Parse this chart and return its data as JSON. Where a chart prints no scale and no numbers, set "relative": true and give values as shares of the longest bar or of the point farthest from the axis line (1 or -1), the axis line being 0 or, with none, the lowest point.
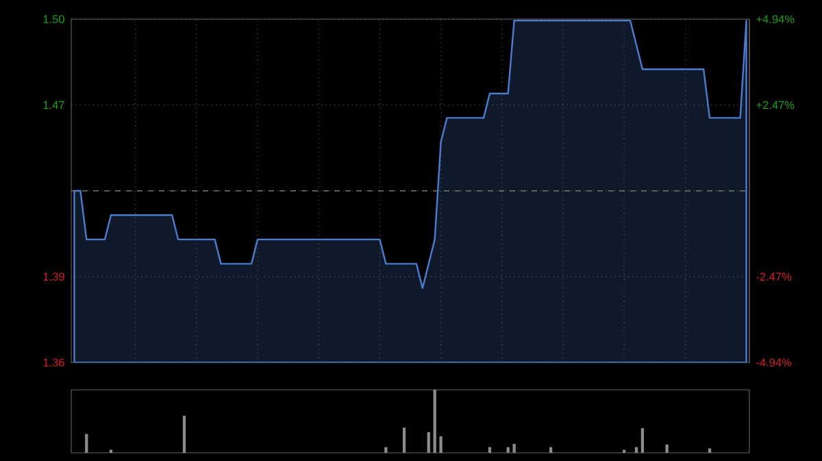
{
  "chart_data": [
    {
      "type": "area",
      "categories": [
        null,
        null,
        null,
        null,
        null,
        null,
        null,
        null,
        null,
        null,
        null,
        null,
        null,
        null,
        null,
        null,
        null,
        null,
        null,
        null,
        null,
        null,
        null,
        null,
        null,
        null,
        null,
        null,
        null,
        null,
        null,
        null,
        null,
        null,
        null,
        null,
        null,
        null,
        null,
        null,
        null,
        null,
        null,
        null,
        null,
        null,
        null,
        null,
        null,
        null,
        null,
        null,
        null,
        null,
        null,
        null,
        null,
        null,
        null,
        null,
        null,
        null,
        null,
        null,
        null,
        null,
        null,
        null,
        null,
        null,
        null,
        null,
        null,
        null,
        null,
        null,
        null,
        null,
        null,
        null,
        null,
        null,
        null,
        null,
        null,
        null,
        null,
        null,
        null,
        null,
        null,
        null,
        null,
        null,
        null,
        null,
        null,
        null,
        null,
        null,
        null,
        null,
        null,
        null,
        null,
        null,
        null,
        null,
        null,
        null,
        null
      ],
      "ylim": [
        1.3594,
        1.5006
      ],
      "yticks": [
        {
          "value": 1.3594,
          "label": "1.36"
        },
        {
          "value": 1.3947,
          "label": "1.39"
        },
        {
          "value": 1.43,
          "label": null
        },
        {
          "value": 1.4653,
          "label": "1.47"
        },
        {
          "value": 1.5006,
          "label": "1.50"
        }
      ],
      "y2lim": [
        -4.94,
        4.94
      ],
      "y2ticks": [
        {
          "value": -4.94,
          "label": "-4.94%"
        },
        {
          "value": -2.47,
          "label": "-2.47%"
        },
        {
          "value": 0,
          "label": null
        },
        {
          "value": 2.47,
          "label": "+2.47%"
        },
        {
          "value": 4.94,
          "label": "+4.94%"
        }
      ],
      "grid": true,
      "ref_lines": [
        {
          "axis": "y",
          "value": 1.43,
          "color": "#777777",
          "line_style": "dashed"
        }
      ],
      "series": [
        {
          "color": "#4a7cd0",
          "values": [
            1.43,
            1.43,
            1.41,
            1.41,
            1.41,
            1.41,
            1.42,
            1.42,
            1.42,
            1.42,
            1.42,
            1.42,
            1.42,
            1.42,
            1.42,
            1.42,
            1.42,
            1.41,
            1.41,
            1.41,
            1.41,
            1.41,
            1.41,
            1.41,
            1.4,
            1.4,
            1.4,
            1.4,
            1.4,
            1.4,
            1.41,
            1.41,
            1.41,
            1.41,
            1.41,
            1.41,
            1.41,
            1.41,
            1.41,
            1.41,
            1.41,
            1.41,
            1.41,
            1.41,
            1.41,
            1.41,
            1.41,
            1.41,
            1.41,
            1.41,
            1.41,
            1.4,
            1.4,
            1.4,
            1.4,
            1.4,
            1.4,
            1.39,
            1.4,
            1.41,
            1.45,
            1.46,
            1.46,
            1.46,
            1.46,
            1.46,
            1.46,
            1.46,
            1.47,
            1.47,
            1.47,
            1.47,
            1.5,
            1.5,
            1.5,
            1.5,
            1.5,
            1.5,
            1.5,
            1.5,
            1.5,
            1.5,
            1.5,
            1.5,
            1.5,
            1.5,
            1.5,
            1.5,
            1.5,
            1.5,
            1.5,
            1.5,
            1.49,
            1.48,
            1.48,
            1.48,
            1.48,
            1.48,
            1.48,
            1.48,
            1.48,
            1.48,
            1.48,
            1.48,
            1.46,
            1.46,
            1.46,
            1.46,
            1.46,
            1.46,
            1.5
          ]
        }
      ]
    },
    {
      "type": "bar",
      "relative": true,
      "categories": [
        null,
        null,
        null,
        null,
        null,
        null,
        null,
        null,
        null,
        null,
        null,
        null,
        null,
        null,
        null,
        null,
        null,
        null,
        null,
        null,
        null,
        null,
        null,
        null,
        null,
        null,
        null,
        null,
        null,
        null,
        null,
        null,
        null,
        null,
        null,
        null,
        null,
        null,
        null,
        null,
        null,
        null,
        null,
        null,
        null,
        null,
        null,
        null,
        null,
        null,
        null,
        null,
        null,
        null,
        null,
        null,
        null,
        null,
        null,
        null,
        null,
        null,
        null,
        null,
        null,
        null,
        null,
        null,
        null,
        null,
        null,
        null,
        null,
        null,
        null,
        null,
        null,
        null,
        null,
        null,
        null,
        null,
        null,
        null,
        null,
        null,
        null,
        null,
        null,
        null,
        null,
        null,
        null,
        null,
        null,
        null,
        null,
        null,
        null,
        null,
        null,
        null,
        null,
        null,
        null,
        null,
        null,
        null,
        null,
        null,
        null
      ],
      "series": [
        {
          "color": "#8c8c8c",
          "values": [
            0,
            0,
            0.3,
            0,
            0,
            0,
            0.05,
            0,
            0,
            0,
            0,
            0,
            0,
            0,
            0,
            0,
            0,
            0,
            0.59,
            0,
            0,
            0,
            0,
            0,
            0,
            0,
            0,
            0,
            0,
            0,
            0,
            0,
            0,
            0,
            0,
            0,
            0,
            0,
            0,
            0,
            0,
            0,
            0,
            0,
            0,
            0,
            0,
            0,
            0,
            0,
            0,
            0.09,
            0,
            0,
            0.4,
            0,
            0,
            0,
            0.33,
            1.0,
            0.26,
            0,
            0,
            0,
            0,
            0,
            0,
            0,
            0.09,
            0,
            0,
            0.09,
            0.14,
            0,
            0,
            0,
            0,
            0,
            0.09,
            0,
            0,
            0,
            0,
            0,
            0,
            0,
            0,
            0,
            0,
            0,
            0.05,
            0,
            0.09,
            0.39,
            0,
            0,
            0,
            0.13,
            0,
            0,
            0,
            0,
            0,
            0,
            0.07,
            0,
            0,
            0,
            0,
            0,
            0
          ]
        }
      ]
    }
  ]
}
